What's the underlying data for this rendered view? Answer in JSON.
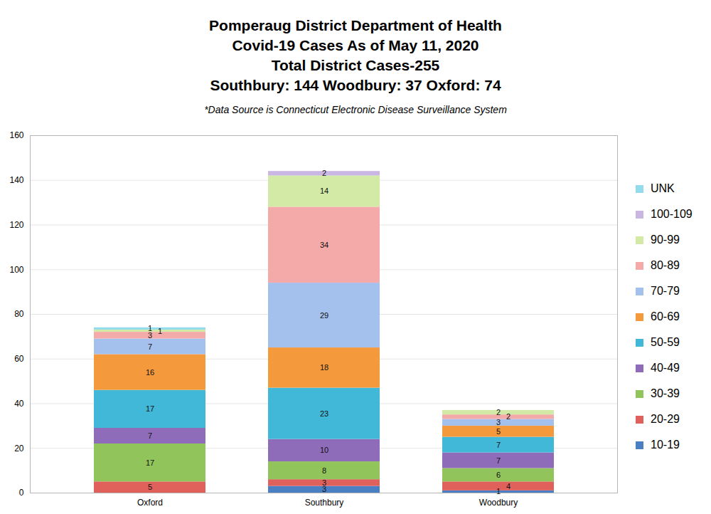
{
  "chart_data": {
    "type": "bar",
    "title": "Pomperaug District Department of Health\nCovid-19 Cases As of May 11, 2020\nTotal District Cases-255\nSouthbury: 144 Woodbury: 37 Oxford: 74",
    "subtitle": "*Data Source is Connecticut Electronic Disease Surveillance System",
    "categories": [
      "Oxford",
      "Southbury",
      "Woodbury"
    ],
    "series": [
      {
        "name": "10-19",
        "color": "#4a7fc4",
        "values": [
          null,
          3,
          1
        ]
      },
      {
        "name": "20-29",
        "color": "#e0605c",
        "values": [
          5,
          3,
          4
        ]
      },
      {
        "name": "30-39",
        "color": "#92c45c",
        "values": [
          17,
          8,
          6
        ]
      },
      {
        "name": "40-49",
        "color": "#8f6cb9",
        "values": [
          7,
          10,
          7
        ]
      },
      {
        "name": "50-59",
        "color": "#41b8d8",
        "values": [
          17,
          23,
          7
        ]
      },
      {
        "name": "60-69",
        "color": "#f59a3c",
        "values": [
          16,
          18,
          5
        ]
      },
      {
        "name": "70-79",
        "color": "#a4c0ec",
        "values": [
          7,
          29,
          3
        ]
      },
      {
        "name": "80-89",
        "color": "#f5aaaa",
        "values": [
          3,
          34,
          2
        ]
      },
      {
        "name": "90-99",
        "color": "#d2eaa6",
        "values": [
          1,
          14,
          2
        ]
      },
      {
        "name": "100-109",
        "color": "#c9b6e2",
        "values": [
          null,
          2,
          null
        ]
      },
      {
        "name": "UNK",
        "color": "#93dcee",
        "values": [
          1,
          null,
          null
        ]
      }
    ],
    "ylim": [
      0,
      160
    ],
    "yticks": [
      0,
      20,
      40,
      60,
      80,
      100,
      120,
      140,
      160
    ],
    "grid": true,
    "stacked": true,
    "data_labels": true,
    "legend": "right"
  }
}
